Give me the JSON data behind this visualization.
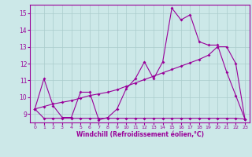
{
  "xlabel": "Windchill (Refroidissement éolien,°C)",
  "x": [
    0,
    1,
    2,
    3,
    4,
    5,
    6,
    7,
    8,
    9,
    10,
    11,
    12,
    13,
    14,
    15,
    16,
    17,
    18,
    19,
    20,
    21,
    22,
    23
  ],
  "temp_line": [
    9.3,
    11.1,
    9.5,
    8.8,
    8.8,
    10.3,
    10.3,
    8.65,
    8.8,
    9.3,
    10.5,
    11.1,
    12.1,
    11.1,
    12.1,
    15.3,
    14.6,
    14.9,
    13.3,
    13.1,
    13.1,
    11.5,
    10.1,
    8.7
  ],
  "flat_line": [
    9.3,
    8.75,
    8.75,
    8.75,
    8.75,
    8.75,
    8.75,
    8.75,
    8.75,
    8.75,
    8.75,
    8.75,
    8.75,
    8.75,
    8.75,
    8.75,
    8.75,
    8.75,
    8.75,
    8.75,
    8.75,
    8.75,
    8.75,
    8.7
  ],
  "trend_line": [
    9.3,
    9.45,
    9.6,
    9.7,
    9.8,
    9.95,
    10.1,
    10.2,
    10.3,
    10.45,
    10.65,
    10.85,
    11.05,
    11.25,
    11.45,
    11.65,
    11.85,
    12.05,
    12.25,
    12.5,
    13.0,
    13.0,
    12.0,
    8.7
  ],
  "color": "#990099",
  "bg_color": "#cce8e8",
  "grid_color": "#aacccc",
  "ylim": [
    8.5,
    15.5
  ],
  "xlim": [
    -0.5,
    23.5
  ],
  "yticks": [
    9,
    10,
    11,
    12,
    13,
    14,
    15
  ],
  "xticks": [
    0,
    1,
    2,
    3,
    4,
    5,
    6,
    7,
    8,
    9,
    10,
    11,
    12,
    13,
    14,
    15,
    16,
    17,
    18,
    19,
    20,
    21,
    22,
    23
  ]
}
